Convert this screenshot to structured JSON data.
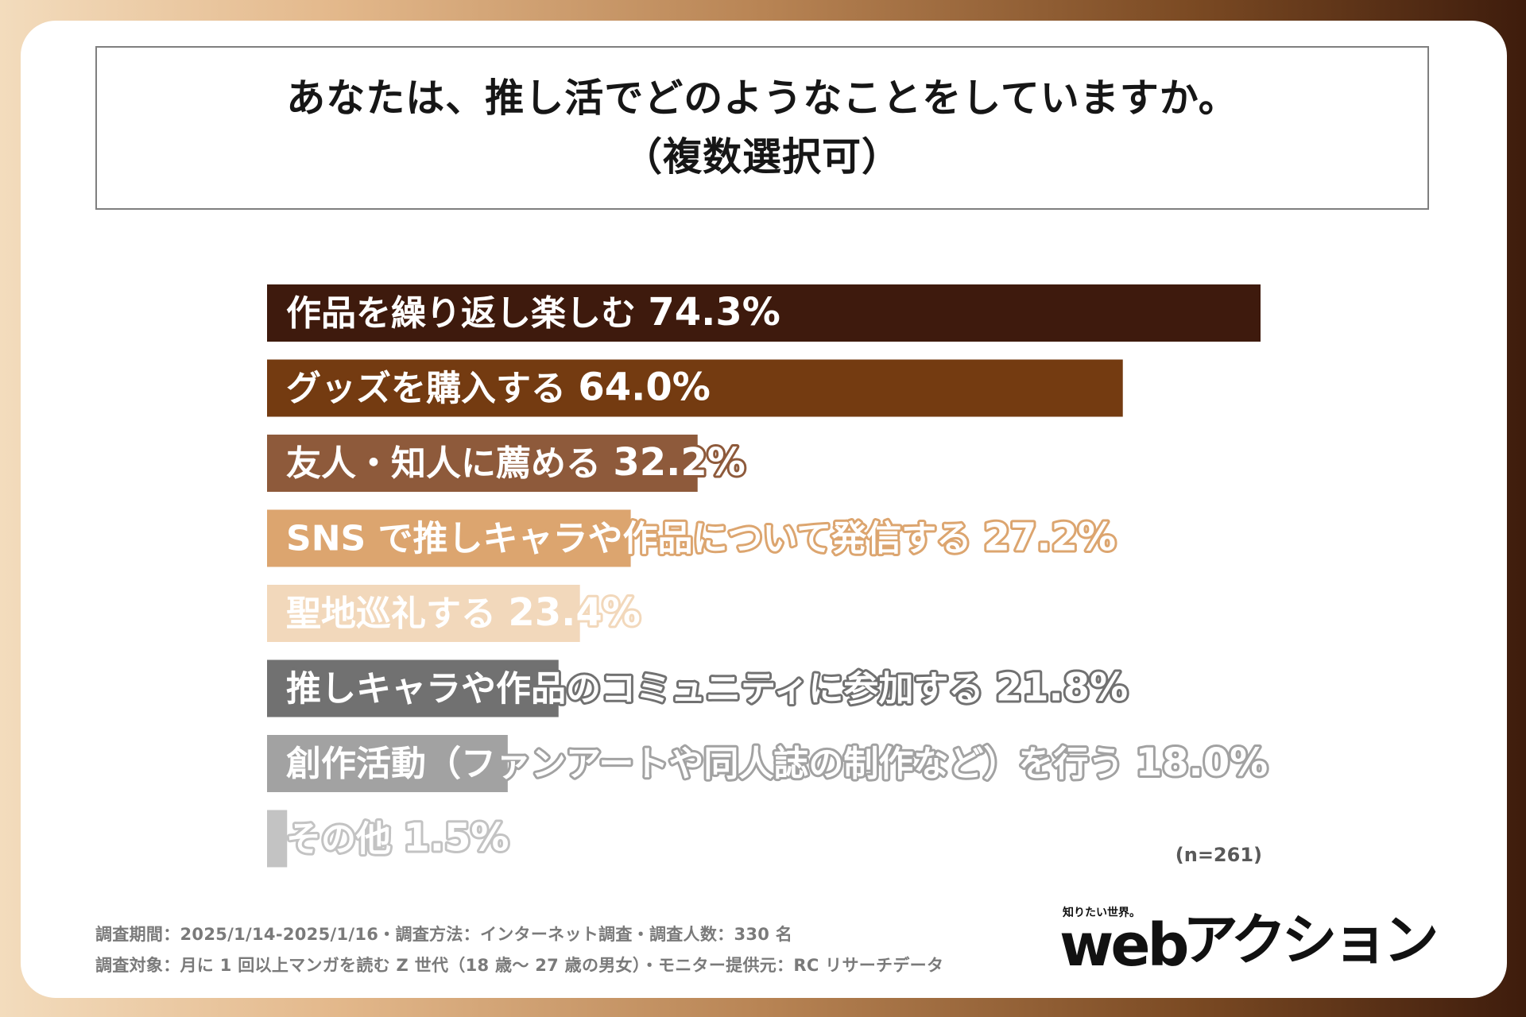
{
  "title": {
    "line1": "あなたは、推し活でどのようなことをしていますか。",
    "line2": "（複数選択可）"
  },
  "chart_data": {
    "type": "bar",
    "orientation": "horizontal",
    "categories": [
      "作品を繰り返し楽しむ",
      "グッズを購入する",
      "友人・知人に薦める",
      "SNS で推しキャラや作品について発信する",
      "聖地巡礼する",
      "推しキャラや作品のコミュニティに参加する",
      "創作活動（ファンアートや同人誌の制作など）を行う",
      "その他"
    ],
    "values": [
      74.3,
      64.0,
      32.2,
      27.2,
      23.4,
      21.8,
      18.0,
      1.5
    ],
    "value_labels": [
      "74.3%",
      "64.0%",
      "32.2%",
      "27.2%",
      "23.4%",
      "21.8%",
      "18.0%",
      "1.5%"
    ],
    "colors": [
      "#3e1a0d",
      "#743b11",
      "#8e5a3b",
      "#dca56f",
      "#f2d8bb",
      "#717171",
      "#a2a2a2",
      "#c3c3c3"
    ],
    "xlim": [
      0,
      74.3
    ],
    "grid": false,
    "legend": "none"
  },
  "sample_note": "(n=261)",
  "footer": {
    "line1": "調査期間：2025/1/14-2025/1/16・調査方法：インターネット調査・調査人数：330 名",
    "line2": "調査対象：月に 1 回以上マンガを読む Z 世代（18 歳～ 27 歳の男女）・モニター提供元：RC リサーチデータ"
  },
  "logo": {
    "tagline": "知りたい世界。",
    "wordmark_latin": "web",
    "wordmark_kana": "アクション"
  }
}
